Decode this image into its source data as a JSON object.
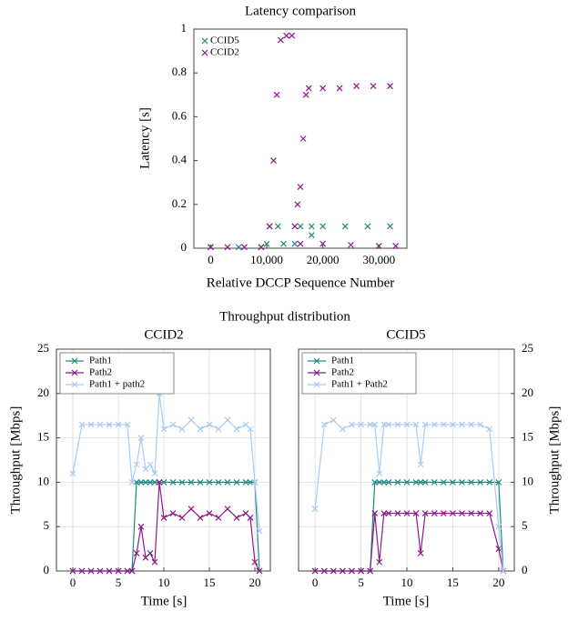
{
  "chart_data": [
    {
      "type": "scatter",
      "title": "Latency comparison",
      "x_label": "Relative DCCP Sequence Number",
      "y_label": "Latency [s]",
      "xlim": [
        -3000,
        35000
      ],
      "xticks": [
        0,
        {
          "value": 10000,
          "label": "10,000"
        },
        {
          "value": 20000,
          "label": "20,000"
        },
        {
          "value": 30000,
          "label": "30,000"
        }
      ],
      "ylim": [
        0,
        1
      ],
      "yticks": [
        0,
        0.2,
        0.4,
        0.6,
        0.8,
        1
      ],
      "grid": false,
      "legend": "upper left",
      "y_axis_side": "left",
      "series": [
        {
          "name": "CCID5",
          "color": "#1f8a80",
          "x": [
            0,
            5000,
            9000,
            10000,
            10500,
            12000,
            13000,
            15000,
            16000,
            18000,
            20000,
            24000,
            28000,
            32000,
            18000
          ],
          "values": [
            0.005,
            0.005,
            0.005,
            0.02,
            0.1,
            0.1,
            0.02,
            0.02,
            0.1,
            0.1,
            0.1,
            0.1,
            0.1,
            0.1,
            0.06
          ]
        },
        {
          "name": "CCID2",
          "color": "#8b1a89",
          "x": [
            0,
            3000,
            6000,
            9000,
            10500,
            11200,
            11800,
            12500,
            13500,
            14500,
            15000,
            15500,
            16000,
            16500,
            17000,
            17500,
            20000,
            23000,
            26000,
            29000,
            32000,
            16000,
            20000,
            25000,
            30000,
            33000
          ],
          "values": [
            0.005,
            0.005,
            0.005,
            0.005,
            0.1,
            0.4,
            0.7,
            0.95,
            0.97,
            0.97,
            0.1,
            0.2,
            0.28,
            0.5,
            0.7,
            0.73,
            0.73,
            0.73,
            0.74,
            0.74,
            0.74,
            0.02,
            0.02,
            0.015,
            0.01,
            0.01
          ]
        }
      ]
    },
    {
      "type": "line",
      "group_title": "Throughput distribution",
      "title": "CCID2",
      "x_label": "Time [s]",
      "y_label": "Throughput [Mbps]",
      "xlim": [
        -1.8,
        21.7
      ],
      "xticks": [
        0,
        5,
        10,
        15,
        20
      ],
      "ylim": [
        0,
        25
      ],
      "yticks": [
        0,
        5,
        10,
        15,
        20,
        25
      ],
      "grid": true,
      "legend": "upper left",
      "y_axis_side": "left",
      "x": [
        0,
        1,
        2,
        3,
        4,
        5,
        6,
        6.5,
        7,
        7.5,
        8,
        8.5,
        9,
        9.5,
        10,
        11,
        12,
        13,
        14,
        15,
        16,
        17,
        18,
        19,
        19.5,
        20,
        20.5
      ],
      "series": [
        {
          "name": "Path1",
          "color": "#1f8a80",
          "values": [
            0,
            0,
            0,
            0,
            0,
            0,
            0,
            0,
            10,
            10,
            10,
            10,
            10,
            10,
            10,
            10,
            10,
            10,
            10,
            10,
            10,
            10,
            10,
            10,
            10,
            10,
            0
          ]
        },
        {
          "name": "Path2",
          "color": "#8b1a89",
          "values": [
            0,
            0,
            0,
            0,
            0,
            0,
            0,
            0,
            2,
            5,
            1.5,
            2,
            1,
            10,
            6,
            6.5,
            6,
            7,
            6,
            6.5,
            6,
            7,
            6,
            6.5,
            6,
            1,
            0
          ]
        },
        {
          "name": "Path1 + path2",
          "color": "#aacbf0",
          "values": [
            11,
            16.5,
            16.5,
            16.5,
            16.5,
            16.5,
            16.5,
            10,
            12,
            15,
            11.5,
            12,
            11,
            20,
            16,
            16.5,
            16,
            17,
            16,
            16.5,
            16,
            17,
            16,
            16.5,
            16,
            10,
            4.5
          ]
        }
      ]
    },
    {
      "type": "line",
      "title": "CCID5",
      "x_label": "Time [s]",
      "y_label": "Throughput [Mbps]",
      "xlim": [
        -1.8,
        21.7
      ],
      "xticks": [
        0,
        5,
        10,
        15,
        20
      ],
      "ylim": [
        0,
        25
      ],
      "yticks": [
        0,
        5,
        10,
        15,
        20,
        25
      ],
      "grid": true,
      "legend": "upper left",
      "y_axis_side": "right",
      "x": [
        0,
        1,
        2,
        3,
        4,
        5,
        6,
        6.5,
        7,
        7.5,
        8,
        9,
        10,
        11,
        11.5,
        12,
        13,
        14,
        15,
        16,
        17,
        18,
        19,
        20,
        20.5
      ],
      "series": [
        {
          "name": "Path1",
          "color": "#1f8a80",
          "values": [
            0,
            0,
            0,
            0,
            0,
            0,
            0,
            10,
            10,
            10,
            10,
            10,
            10,
            10,
            10,
            10,
            10,
            10,
            10,
            10,
            10,
            10,
            10,
            10,
            0
          ]
        },
        {
          "name": "Path2",
          "color": "#8b1a89",
          "values": [
            0,
            0,
            0,
            0,
            0,
            0,
            0,
            6.5,
            1,
            6.5,
            6.5,
            6.5,
            6.5,
            6.5,
            2,
            6.5,
            6.5,
            6.5,
            6.5,
            6.5,
            6.5,
            6.5,
            6.5,
            2.5,
            0
          ]
        },
        {
          "name": "Path1 + Path2",
          "color": "#aacbf0",
          "values": [
            7,
            16.5,
            17,
            16,
            16.5,
            16.5,
            16.5,
            16.5,
            11,
            16.5,
            16.5,
            16.5,
            16.5,
            16.5,
            12,
            16.5,
            16.5,
            16.5,
            16.5,
            16.5,
            16.5,
            16.5,
            16,
            5,
            0
          ]
        }
      ]
    }
  ]
}
